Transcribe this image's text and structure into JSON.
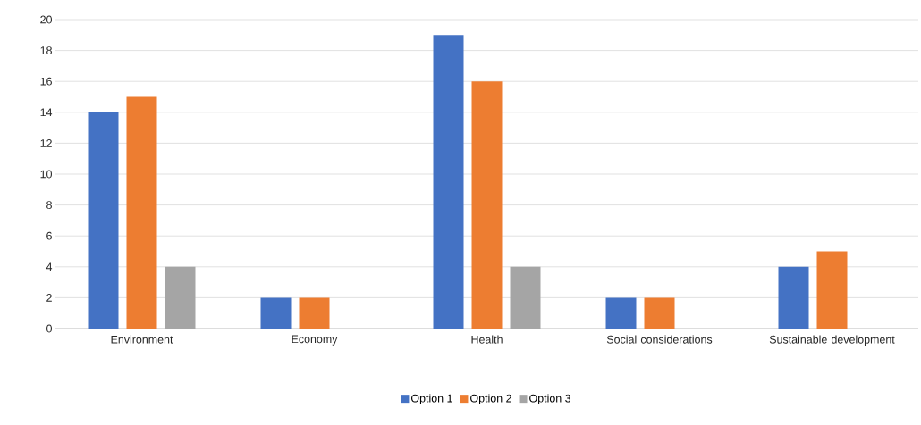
{
  "chart_data": {
    "type": "bar",
    "categories": [
      "Environment",
      "Economy",
      "Health",
      "Social considerations",
      "Sustainable development"
    ],
    "series": [
      {
        "name": "Option 1",
        "color": "#4472c4",
        "values": [
          14,
          2,
          19,
          2,
          4
        ]
      },
      {
        "name": "Option 2",
        "color": "#ed7d31",
        "values": [
          15,
          2,
          16,
          2,
          5
        ]
      },
      {
        "name": "Option 3",
        "color": "#a5a5a5",
        "values": [
          4,
          0,
          4,
          0,
          0
        ]
      }
    ],
    "ylim": [
      0,
      20
    ],
    "yticks": [
      0,
      2,
      4,
      6,
      8,
      10,
      12,
      14,
      16,
      18,
      20
    ],
    "grid": "y",
    "legend": "bottom"
  }
}
